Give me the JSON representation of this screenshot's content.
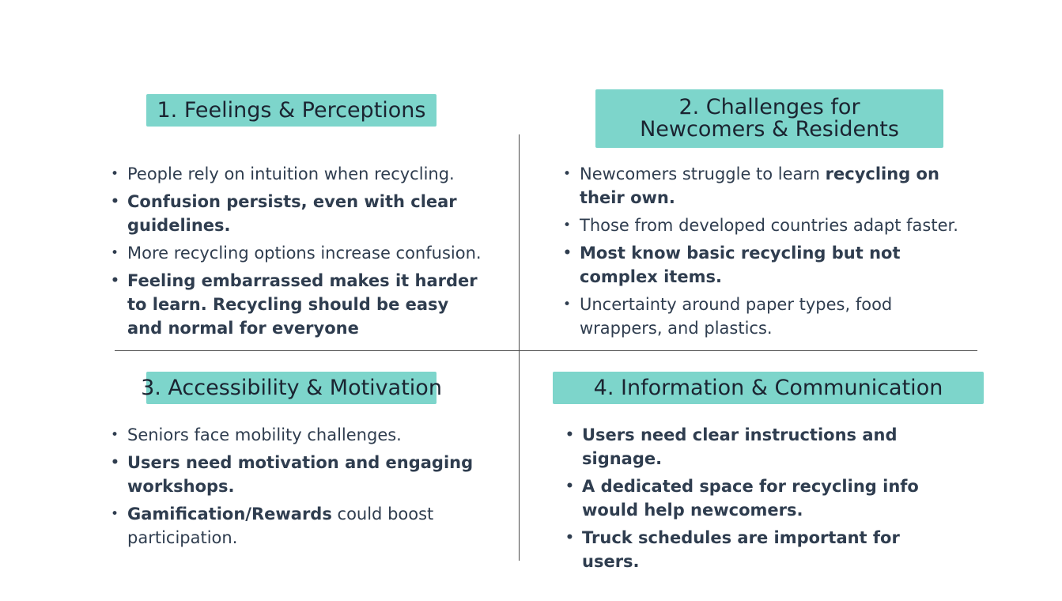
{
  "quadrants": [
    {
      "title_lines": [
        "1. Feelings & Perceptions"
      ],
      "items": [
        {
          "parts": [
            {
              "text": "People rely on intuition when recycling.",
              "bold": false
            }
          ]
        },
        {
          "parts": [
            {
              "text": "Confusion persists, even with clear guidelines.",
              "bold": true
            }
          ]
        },
        {
          "parts": [
            {
              "text": "More recycling options increase confusion.",
              "bold": false
            }
          ]
        },
        {
          "parts": [
            {
              "text": "Feeling embarrassed makes it harder to learn. Recycling should be easy and normal for everyone",
              "bold": true
            }
          ]
        }
      ]
    },
    {
      "title_lines": [
        "2. Challenges for",
        "Newcomers & Residents"
      ],
      "items": [
        {
          "parts": [
            {
              "text": "Newcomers struggle to learn ",
              "bold": false
            },
            {
              "text": "recycling on their own.",
              "bold": true
            }
          ]
        },
        {
          "parts": [
            {
              "text": "Those from developed countries adapt faster.",
              "bold": false
            }
          ]
        },
        {
          "parts": [
            {
              "text": "Most know basic recycling but not complex items.",
              "bold": true
            }
          ]
        },
        {
          "parts": [
            {
              "text": "Uncertainty around paper types, food wrappers, and plastics.",
              "bold": false
            }
          ]
        }
      ]
    },
    {
      "title_lines": [
        "3. Accessibility & Motivation"
      ],
      "items": [
        {
          "parts": [
            {
              "text": "Seniors face mobility challenges.",
              "bold": false
            }
          ]
        },
        {
          "parts": [
            {
              "text": "Users need motivation and engaging workshops.",
              "bold": true
            }
          ]
        },
        {
          "parts": [
            {
              "text": "Gamification/Rewards",
              "bold": true
            },
            {
              "text": " could boost participation.",
              "bold": false
            }
          ]
        }
      ]
    },
    {
      "title_lines": [
        "4. Information & Communication"
      ],
      "items": [
        {
          "parts": [
            {
              "text": "Users need clear instructions and signage.",
              "bold": true
            }
          ]
        },
        {
          "parts": [
            {
              "text": "A dedicated space for recycling info would help newcomers.",
              "bold": true
            }
          ]
        },
        {
          "parts": [
            {
              "text": "Truck schedules are important for users.",
              "bold": true
            }
          ]
        }
      ]
    }
  ],
  "bullet_glyph": "•",
  "colors": {
    "header_bg": "#7dd5cb",
    "text": "#2f3d4f",
    "divider": "#4a4a4a"
  }
}
